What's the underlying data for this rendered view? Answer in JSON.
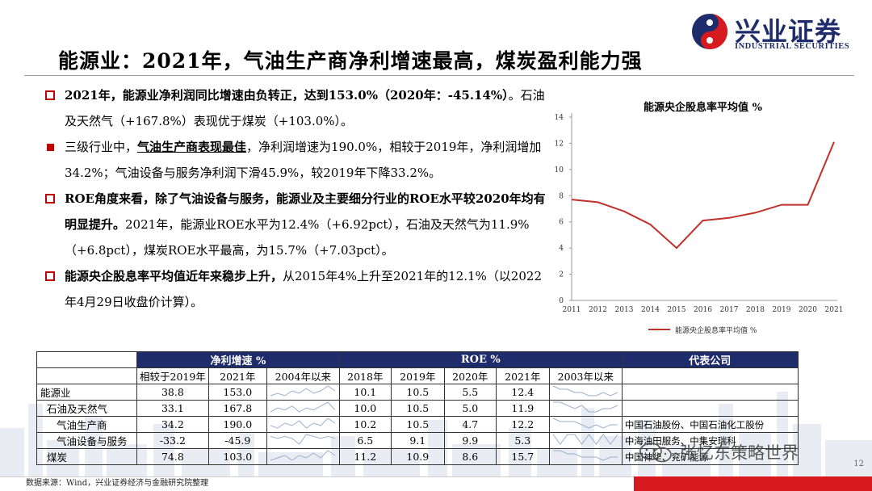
{
  "header": {
    "title": "能源业：2021年，气油生产商净利增速最高，煤炭盈利能力强",
    "logo_cn": "兴业证券",
    "logo_en": "INDUSTRIAL SECURITIES"
  },
  "bullets": [
    {
      "style": "hollow",
      "parts": [
        {
          "t": "2021年，能源业净利润同比增速由负转正，达到153.0%（2020年：-45.14%）",
          "b": true
        },
        {
          "t": "。石油及天然气（+167.8%）表现优于煤炭（+103.0%）。",
          "b": false
        }
      ]
    },
    {
      "style": "solid",
      "parts": [
        {
          "t": "三级行业中，",
          "b": false
        },
        {
          "t": "气油生产商表现最佳",
          "b": "u"
        },
        {
          "t": "，净利润增速为190.0%，相较于2019年，净利润增加34.2%；气油设备与服务净利润下滑45.9%，较2019年下降33.2%。",
          "b": false
        }
      ]
    },
    {
      "style": "hollow",
      "parts": [
        {
          "t": "ROE角度来看，除了气油设备与服务，能源业及主要细分行业的ROE水平较2020年均有明显提升。",
          "b": true
        },
        {
          "t": "2021年，能源业ROE水平为12.4%（+6.92pct），石油及天然气为11.9%（+6.8pct），煤炭ROE水平最高，为15.7%（+7.03pct）。",
          "b": false
        }
      ]
    },
    {
      "style": "hollow",
      "parts": [
        {
          "t": "能源央企股息率平均值近年来稳步上升，",
          "b": true
        },
        {
          "t": "从2015年4%上升至2021年的12.1%（以2022年4月29日收盘价计算）。",
          "b": false
        }
      ]
    }
  ],
  "chart_data": {
    "type": "line",
    "title": "能源央企股息率平均值 %",
    "x": [
      "2011",
      "2012",
      "2013",
      "2014",
      "2015",
      "2016",
      "2017",
      "2018",
      "2019",
      "2020",
      "2021"
    ],
    "series": [
      {
        "name": "能源央企股息率平均值 %",
        "values": [
          7.7,
          7.5,
          6.8,
          5.8,
          4.0,
          6.1,
          6.3,
          6.7,
          7.3,
          7.3,
          12.1
        ],
        "color": "#c0312b"
      }
    ],
    "ylim": [
      0,
      14
    ],
    "yticks": [
      0,
      2,
      4,
      6,
      8,
      10,
      12,
      14
    ],
    "legend_position": "bottom",
    "grid": false
  },
  "table": {
    "group_headers": [
      "净利增速 %",
      "ROE %",
      "代表公司"
    ],
    "sub_headers": [
      "相较于2019年",
      "2021年",
      "2004年以来",
      "2018年",
      "2019年",
      "2020年",
      "2021年",
      "2003年以来"
    ],
    "rows": [
      {
        "name": "能源业",
        "indent": 0,
        "vs2019": "38.8",
        "g2021": "153.0",
        "r2018": "10.1",
        "r2019": "10.5",
        "r2020": "5.5",
        "r2021": "12.4",
        "company": ""
      },
      {
        "name": "石油及天然气",
        "indent": 1,
        "vs2019": "33.1",
        "g2021": "167.8",
        "r2018": "10.0",
        "r2019": "10.5",
        "r2020": "5.0",
        "r2021": "11.9",
        "company": ""
      },
      {
        "name": "气油生产商",
        "indent": 2,
        "vs2019": "34.2",
        "g2021": "190.0",
        "r2018": "10.2",
        "r2019": "10.5",
        "r2020": "4.7",
        "r2021": "12.2",
        "company": "中国石油股份、中国石油化工股份"
      },
      {
        "name": "气油设备与服务",
        "indent": 2,
        "vs2019": "-33.2",
        "g2021": "-45.9",
        "r2018": "6.5",
        "r2019": "9.1",
        "r2020": "9.9",
        "r2021": "5.3",
        "company": "中海油田服务、中集安瑞科"
      },
      {
        "name": "煤炭",
        "indent": 1,
        "vs2019": "74.8",
        "g2021": "103.0",
        "r2018": "11.2",
        "r2019": "10.9",
        "r2020": "8.6",
        "r2021": "15.7",
        "company": "中国神华、兖矿能源"
      }
    ]
  },
  "footer": {
    "source": "数据来源：Wind，兴业证券经济与金融研究院整理",
    "page": "12",
    "watermark": "张忆东策略世界"
  },
  "colors": {
    "accent_red": "#c00000",
    "navy": "#1f2c6b",
    "line": "#c0312b",
    "footer_red": "#d71920"
  }
}
